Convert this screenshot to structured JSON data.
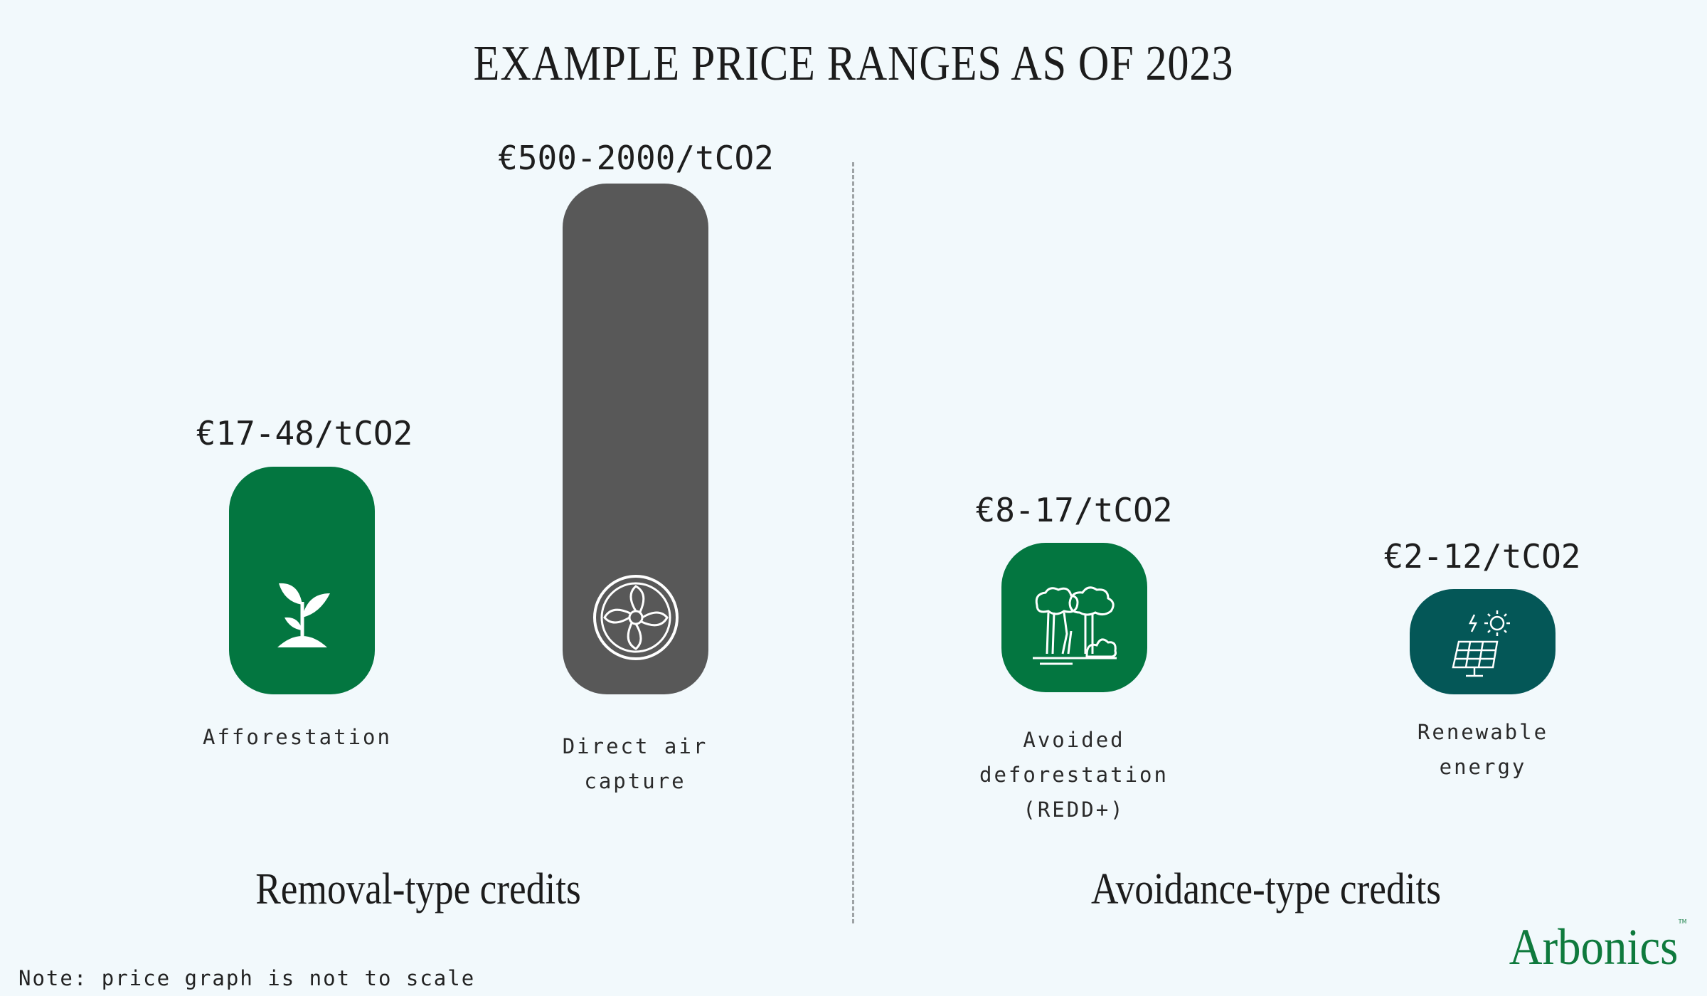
{
  "title": "EXAMPLE PRICE RANGES AS OF 2023",
  "chart_data": {
    "type": "bar",
    "note": "Note: price graph is not to scale",
    "groups": [
      {
        "label": "Removal-type credits",
        "items": [
          {
            "category": "Afforestation",
            "price_label": "€17-48/tCO2",
            "min": 17,
            "max": 48,
            "unit": "€/tCO2",
            "color": "#037640",
            "icon": "seedling-icon"
          },
          {
            "category": "Direct air capture",
            "price_label": "€500-2000/tCO2",
            "min": 500,
            "max": 2000,
            "unit": "€/tCO2",
            "color": "#585858",
            "icon": "fan-icon"
          }
        ]
      },
      {
        "label": "Avoidance-type credits",
        "items": [
          {
            "category": "Avoided deforestation (REDD+)",
            "price_label": "€8-17/tCO2",
            "min": 8,
            "max": 17,
            "unit": "€/tCO2",
            "color": "#037640",
            "icon": "forest-icon"
          },
          {
            "category": "Renewable energy",
            "price_label": "€2-12/tCO2",
            "min": 2,
            "max": 12,
            "unit": "€/tCO2",
            "color": "#045757",
            "icon": "solar-panel-icon"
          }
        ]
      }
    ]
  },
  "labels": {
    "afforestation_lines": [
      "Afforestation"
    ],
    "dac_lines": [
      "Direct air",
      "capture"
    ],
    "redd_lines": [
      "Avoided",
      "deforestation",
      "(REDD+)"
    ],
    "renewable_lines": [
      "Renewable",
      "energy"
    ]
  },
  "brand": {
    "name": "Arbonics",
    "color": "#0f7a3d"
  }
}
